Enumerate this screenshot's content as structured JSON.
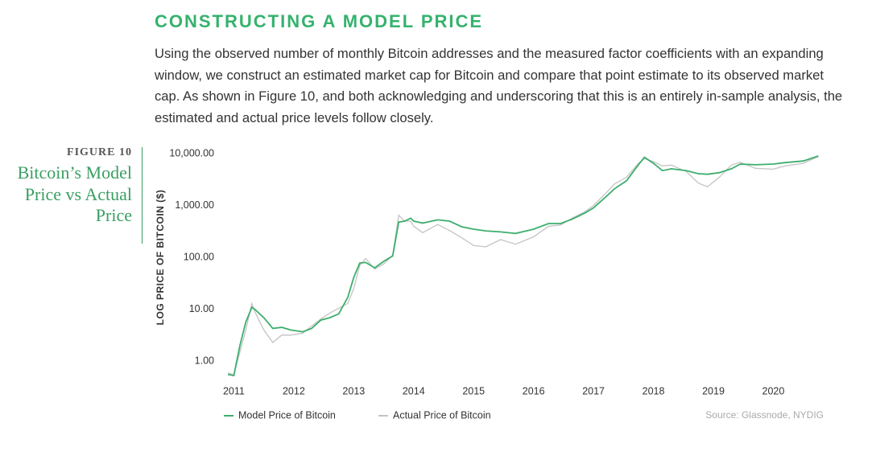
{
  "heading": "CONSTRUCTING A MODEL PRICE",
  "paragraph": "Using the observed number of monthly Bitcoin addresses and the measured factor coefficients with an expanding window, we construct an estimated market cap for Bitcoin and compare that point estimate to its observed market cap. As shown in Figure 10, and both acknowledging and underscoring that this is an entirely in-sample analysis, the estimated and actual price levels follow closely.",
  "chart_data": {
    "type": "line",
    "figure_label": "FIGURE 10",
    "title": "Bitcoin’s Model Price vs Actual Price",
    "y_label": "LOG PRICE OF BITCOIN ($)",
    "source": "Source: Glassnode, NYDIG",
    "log_y": true,
    "legend": "bottom-left",
    "xlim": [
      2010.9,
      2020.8
    ],
    "xticks": [
      2011,
      2012,
      2013,
      2014,
      2015,
      2016,
      2017,
      2018,
      2019,
      2020
    ],
    "ylim": [
      0.4,
      10000
    ],
    "yticks": [
      {
        "value": 1,
        "label": "1.00"
      },
      {
        "value": 10,
        "label": "10.00"
      },
      {
        "value": 100,
        "label": "100.00"
      },
      {
        "value": 1000,
        "label": "1,000.00"
      },
      {
        "value": 10000,
        "label": "10,000.00"
      }
    ],
    "x": [
      2010.9,
      2011.0,
      2011.1,
      2011.2,
      2011.3,
      2011.35,
      2011.5,
      2011.65,
      2011.8,
      2011.95,
      2012.15,
      2012.3,
      2012.45,
      2012.6,
      2012.75,
      2012.9,
      2013.0,
      2013.1,
      2013.2,
      2013.35,
      2013.5,
      2013.65,
      2013.75,
      2013.85,
      2013.95,
      2014.0,
      2014.15,
      2014.4,
      2014.6,
      2014.8,
      2015.0,
      2015.2,
      2015.45,
      2015.7,
      2016.0,
      2016.25,
      2016.45,
      2016.65,
      2016.85,
      2017.0,
      2017.2,
      2017.35,
      2017.55,
      2017.75,
      2017.85,
      2018.0,
      2018.15,
      2018.3,
      2018.55,
      2018.75,
      2018.9,
      2019.1,
      2019.3,
      2019.45,
      2019.7,
      2020.0,
      2020.2,
      2020.5,
      2020.75
    ],
    "series": [
      {
        "name": "Model Price of Bitcoin",
        "color": "#3dae6e",
        "values": [
          0.56,
          0.53,
          2.0,
          5.7,
          11,
          10,
          6.9,
          4.3,
          4.5,
          4.0,
          3.7,
          4.3,
          6.2,
          6.9,
          8.2,
          17,
          41,
          78,
          80,
          63,
          84,
          107,
          480,
          500,
          570,
          500,
          460,
          530,
          500,
          390,
          350,
          325,
          310,
          290,
          350,
          450,
          450,
          550,
          710,
          900,
          1450,
          2100,
          3000,
          6100,
          8500,
          6500,
          4700,
          5100,
          4700,
          4100,
          4000,
          4300,
          5100,
          6300,
          6100,
          6300,
          6700,
          7200,
          9000
        ]
      },
      {
        "name": "Actual Price of Bitcoin",
        "color": "#c4c4c4",
        "values": [
          0.6,
          0.55,
          1.5,
          4,
          13,
          9,
          4,
          2.3,
          3.2,
          3.2,
          3.5,
          4.8,
          6.5,
          8.5,
          10.5,
          13,
          25,
          70,
          95,
          60,
          75,
          110,
          650,
          500,
          500,
          400,
          300,
          430,
          330,
          240,
          170,
          160,
          220,
          180,
          250,
          400,
          420,
          580,
          750,
          1000,
          1700,
          2600,
          3500,
          6500,
          8000,
          7000,
          5800,
          6000,
          4500,
          2700,
          2300,
          3500,
          6000,
          6800,
          5200,
          5000,
          5800,
          6500,
          8800
        ]
      }
    ]
  }
}
